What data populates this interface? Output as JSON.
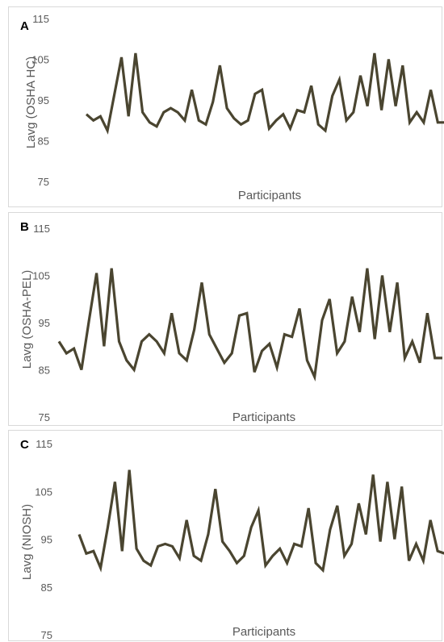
{
  "colors": {
    "line": "#4a4530",
    "text": "#595959",
    "border": "#d9d9d9"
  },
  "chart_data": [
    {
      "type": "line",
      "panel_label": "A",
      "xlabel": "Participants",
      "ylabel": "Lavg (OSHA HC)",
      "yticks": [
        "115",
        "105",
        "95",
        "85",
        "75"
      ],
      "ylim": [
        75,
        115
      ],
      "grid": false,
      "series": [
        {
          "values": [
            91.5,
            90.0,
            91.0,
            87.5,
            96.5,
            105.5,
            91.0,
            106.5,
            92.0,
            89.5,
            88.5,
            92.0,
            93.0,
            92.0,
            90.0,
            97.5,
            90.0,
            89.0,
            94.5,
            103.5,
            93.0,
            90.5,
            89.0,
            90.0,
            96.5,
            97.5,
            88.0,
            90.0,
            91.5,
            88.0,
            92.5,
            92.0,
            98.5,
            89.0,
            87.5,
            96.0,
            100.0,
            90.0,
            92.0,
            101.0,
            93.5,
            106.5,
            92.5,
            105.0,
            93.5,
            103.5,
            89.5,
            92.0,
            89.5,
            97.5,
            89.5,
            89.5
          ]
        }
      ]
    },
    {
      "type": "line",
      "panel_label": "B",
      "xlabel": "Participants",
      "ylabel": "Lavg (OSHA-PEL)",
      "yticks": [
        "115",
        "105",
        "95",
        "85",
        "75"
      ],
      "ylim": [
        75,
        115
      ],
      "grid": false,
      "series": [
        {
          "values": [
            91.0,
            88.5,
            89.5,
            85.0,
            95.5,
            105.5,
            90.0,
            106.5,
            91.0,
            87.0,
            85.0,
            91.0,
            92.5,
            91.0,
            88.5,
            97.0,
            88.5,
            87.0,
            93.5,
            103.5,
            92.5,
            89.5,
            86.5,
            88.5,
            96.5,
            97.0,
            84.5,
            89.0,
            90.5,
            85.5,
            92.5,
            92.0,
            98.0,
            87.0,
            83.5,
            95.5,
            100.0,
            88.5,
            91.0,
            100.5,
            93.0,
            106.5,
            91.5,
            105.0,
            93.0,
            103.5,
            87.5,
            91.0,
            86.5,
            97.0,
            87.5,
            87.5
          ]
        }
      ]
    },
    {
      "type": "line",
      "panel_label": "C",
      "xlabel": "Participants",
      "ylabel": "Lavg (NIOSH)",
      "yticks": [
        "115",
        "105",
        "95",
        "85",
        "75"
      ],
      "ylim": [
        75,
        115
      ],
      "grid": false,
      "series": [
        {
          "values": [
            96.0,
            92.0,
            92.5,
            89.0,
            97.5,
            107.0,
            92.5,
            109.5,
            93.0,
            90.5,
            89.5,
            93.5,
            94.0,
            93.5,
            91.0,
            99.0,
            91.5,
            90.5,
            96.0,
            105.5,
            94.5,
            92.5,
            90.0,
            91.5,
            97.5,
            101.0,
            89.5,
            91.5,
            93.0,
            90.0,
            94.0,
            93.5,
            101.5,
            90.0,
            88.5,
            97.0,
            102.0,
            91.5,
            94.0,
            102.5,
            96.0,
            108.5,
            94.5,
            107.0,
            95.0,
            106.0,
            90.5,
            94.0,
            90.5,
            99.0,
            92.5,
            92.0
          ]
        }
      ]
    }
  ]
}
